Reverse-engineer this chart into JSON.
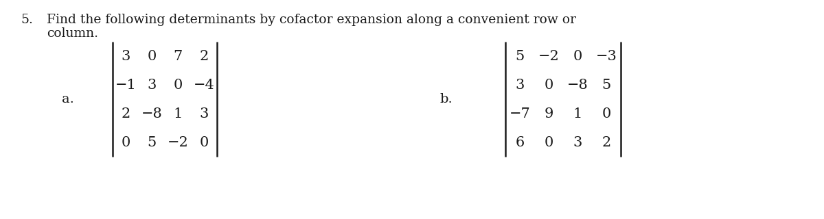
{
  "title_number": "5.",
  "title_line1": "Find the following determinants by cofactor expansion along a convenient row or",
  "title_line2": "column.",
  "label_a": "a.",
  "label_b": "b.",
  "matrix_a": [
    [
      "3",
      "0",
      "7",
      "2"
    ],
    [
      "−1",
      "3",
      "0",
      "−4"
    ],
    [
      "2",
      "−8",
      "1",
      "3"
    ],
    [
      "0",
      "5",
      "−2",
      "0"
    ]
  ],
  "matrix_b": [
    [
      "5",
      "−2",
      "0",
      "−3"
    ],
    [
      "3",
      "0",
      "−8",
      "5"
    ],
    [
      "−7",
      "9",
      "1",
      "0"
    ],
    [
      "6",
      "0",
      "3",
      "2"
    ]
  ],
  "bg_color": "#ffffff",
  "text_color": "#1a1a1a",
  "font_size_title": 13.5,
  "font_size_matrix": 15,
  "font_size_label": 14
}
